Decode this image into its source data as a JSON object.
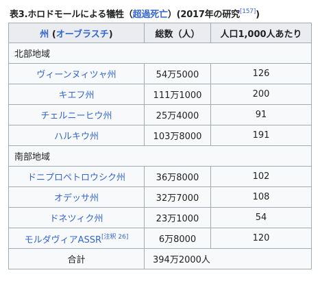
{
  "caption": {
    "prefix": "表3.ホロドモールによる犠牲（",
    "link": "超過死亡",
    "suffix": "）(2017年の研究",
    "ref": "[157]",
    "close": ")"
  },
  "table": {
    "header": {
      "col1_link": "州",
      "col1_paren_open": " (",
      "col1_sub_link": "オーブラスチ",
      "col1_paren_close": ")",
      "col2": "総数（人）",
      "col3": "人口1,000人あたり"
    },
    "sections": [
      {
        "title": "北部地域",
        "rows": [
          {
            "name": "ヴィーンヌィツャ州",
            "total": "54万5000",
            "per1000": "126"
          },
          {
            "name": "キエフ州",
            "total": "111万1000",
            "per1000": "200"
          },
          {
            "name": "チェルニーヒウ州",
            "total": "25万4000",
            "per1000": "91"
          },
          {
            "name": "ハルキウ州",
            "total": "103万8000",
            "per1000": "191"
          }
        ]
      },
      {
        "title": "南部地域",
        "rows": [
          {
            "name": "ドニプロペトロウシク州",
            "total": "36万8000",
            "per1000": "102"
          },
          {
            "name": "オデッサ州",
            "total": "32万7000",
            "per1000": "108"
          },
          {
            "name": "ドネツィク州",
            "total": "23万1000",
            "per1000": "54"
          },
          {
            "name": "モルダヴィアASSR",
            "note": "[注釈 26]",
            "total": "6万8000",
            "per1000": "120"
          }
        ]
      }
    ],
    "total_row": {
      "label": "合計",
      "value": "394万2000人"
    }
  }
}
